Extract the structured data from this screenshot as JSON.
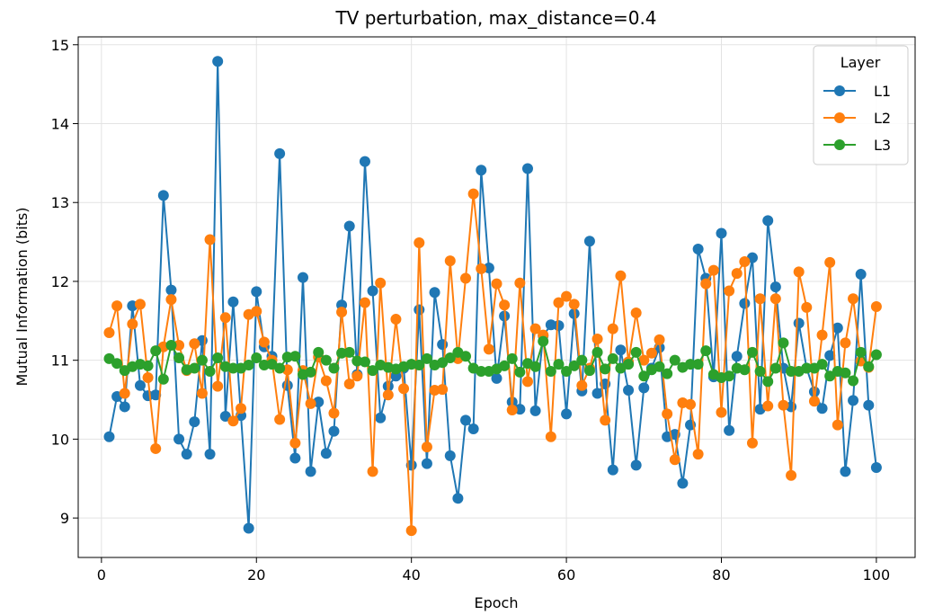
{
  "chart_data": {
    "type": "line",
    "title": "TV perturbation, max_distance=0.4",
    "xlabel": "Epoch",
    "ylabel": "Mutual Information (bits)",
    "xlim": [
      -3,
      105
    ],
    "ylim": [
      8.5,
      15.1
    ],
    "xticks": [
      0,
      20,
      40,
      60,
      80,
      100
    ],
    "yticks": [
      9,
      10,
      11,
      12,
      13,
      14,
      15
    ],
    "grid": true,
    "legend": {
      "title": "Layer",
      "position": "top-right"
    },
    "x": [
      1,
      2,
      3,
      4,
      5,
      6,
      7,
      8,
      9,
      10,
      11,
      12,
      13,
      14,
      15,
      16,
      17,
      18,
      19,
      20,
      21,
      22,
      23,
      24,
      25,
      26,
      27,
      28,
      29,
      30,
      31,
      32,
      33,
      34,
      35,
      36,
      37,
      38,
      39,
      40,
      41,
      42,
      43,
      44,
      45,
      46,
      47,
      48,
      49,
      50,
      51,
      52,
      53,
      54,
      55,
      56,
      57,
      58,
      59,
      60,
      61,
      62,
      63,
      64,
      65,
      66,
      67,
      68,
      69,
      70,
      71,
      72,
      73,
      74,
      75,
      76,
      77,
      78,
      79,
      80,
      81,
      82,
      83,
      84,
      85,
      86,
      87,
      88,
      89,
      90,
      91,
      92,
      93,
      94,
      95,
      96,
      97,
      98,
      99,
      100
    ],
    "series": [
      {
        "name": "L1",
        "color": "#1f77b4",
        "values": [
          10.03,
          10.54,
          10.41,
          11.69,
          10.68,
          10.55,
          10.56,
          13.09,
          11.89,
          10.0,
          9.81,
          10.22,
          11.25,
          9.81,
          14.79,
          10.29,
          11.74,
          10.3,
          8.87,
          11.87,
          11.17,
          11.05,
          13.62,
          10.68,
          9.76,
          12.05,
          9.59,
          10.47,
          9.82,
          10.1,
          11.7,
          12.7,
          10.82,
          13.52,
          11.88,
          10.27,
          10.67,
          10.8,
          10.9,
          9.67,
          11.64,
          9.69,
          11.86,
          11.2,
          9.79,
          9.25,
          10.24,
          10.13,
          13.41,
          12.17,
          10.77,
          11.56,
          10.47,
          10.38,
          13.43,
          10.36,
          11.31,
          11.45,
          11.44,
          10.32,
          11.59,
          10.61,
          12.51,
          10.58,
          10.7,
          9.61,
          11.13,
          10.62,
          9.67,
          10.65,
          10.9,
          11.16,
          10.03,
          10.06,
          9.44,
          10.18,
          12.41,
          12.04,
          10.79,
          12.61,
          10.11,
          11.05,
          11.72,
          12.3,
          10.38,
          12.77,
          11.93,
          10.9,
          10.41,
          11.47,
          10.9,
          10.6,
          10.39,
          11.06,
          11.41,
          9.59,
          10.49,
          12.09,
          10.43,
          9.64
        ]
      },
      {
        "name": "L2",
        "color": "#ff7f0e",
        "values": [
          11.35,
          11.69,
          10.58,
          11.46,
          11.71,
          10.78,
          9.88,
          11.17,
          11.77,
          11.19,
          10.87,
          11.21,
          10.58,
          12.53,
          10.67,
          11.54,
          10.23,
          10.39,
          11.58,
          11.62,
          11.23,
          11.0,
          10.25,
          10.88,
          9.95,
          10.87,
          10.45,
          11.04,
          10.74,
          10.33,
          11.61,
          10.7,
          10.8,
          11.73,
          9.59,
          11.98,
          10.56,
          11.52,
          10.64,
          8.84,
          12.49,
          9.9,
          10.62,
          10.63,
          12.26,
          11.02,
          12.04,
          13.11,
          12.16,
          11.14,
          11.97,
          11.7,
          10.37,
          11.98,
          10.73,
          11.4,
          11.32,
          10.03,
          11.73,
          11.81,
          11.71,
          10.68,
          10.9,
          11.27,
          10.24,
          11.4,
          12.07,
          10.98,
          11.6,
          11.0,
          11.09,
          11.26,
          10.32,
          9.74,
          10.46,
          10.44,
          9.81,
          11.97,
          12.14,
          10.34,
          11.88,
          12.1,
          12.25,
          9.95,
          11.78,
          10.42,
          11.78,
          10.43,
          9.54,
          12.12,
          11.67,
          10.48,
          11.32,
          12.24,
          10.18,
          11.22,
          11.78,
          10.99,
          10.91,
          11.68
        ]
      },
      {
        "name": "L3",
        "color": "#2ca02c",
        "values": [
          11.02,
          10.96,
          10.87,
          10.92,
          10.95,
          10.93,
          11.12,
          10.76,
          11.19,
          11.03,
          10.88,
          10.9,
          11.0,
          10.86,
          11.03,
          10.92,
          10.9,
          10.9,
          10.94,
          11.03,
          10.94,
          10.95,
          10.9,
          11.04,
          11.05,
          10.82,
          10.85,
          11.1,
          11.0,
          10.9,
          11.09,
          11.1,
          10.99,
          10.98,
          10.87,
          10.94,
          10.91,
          10.89,
          10.92,
          10.95,
          10.94,
          11.02,
          10.94,
          10.97,
          11.03,
          11.1,
          11.05,
          10.9,
          10.86,
          10.86,
          10.89,
          10.93,
          11.02,
          10.85,
          10.96,
          10.92,
          11.24,
          10.86,
          10.95,
          10.86,
          10.93,
          11.0,
          10.87,
          11.1,
          10.89,
          11.02,
          10.9,
          10.95,
          11.1,
          10.8,
          10.88,
          10.92,
          10.83,
          11.0,
          10.91,
          10.95,
          10.95,
          11.12,
          10.82,
          10.78,
          10.8,
          10.9,
          10.88,
          11.1,
          10.86,
          10.73,
          10.9,
          11.22,
          10.86,
          10.86,
          10.9,
          10.9,
          10.95,
          10.8,
          10.86,
          10.84,
          10.74,
          11.1,
          10.92,
          11.07
        ]
      }
    ]
  }
}
